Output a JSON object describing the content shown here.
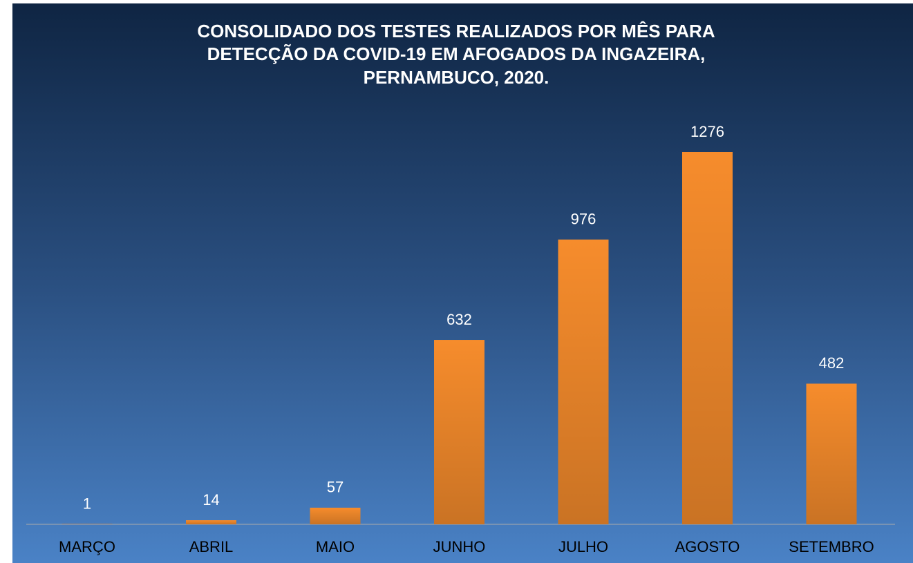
{
  "chart_data": {
    "type": "bar",
    "title": [
      "CONSOLIDADO DOS TESTES REALIZADOS POR MÊS PARA",
      "DETECÇÃO DA COVID-19 EM AFOGADOS DA INGAZEIRA,",
      "PERNAMBUCO, 2020."
    ],
    "categories": [
      "MARÇO",
      "ABRIL",
      "MAIO",
      "JUNHO",
      "JULHO",
      "AGOSTO",
      "SETEMBRO"
    ],
    "values": [
      1,
      14,
      57,
      632,
      976,
      1276,
      482
    ],
    "color": "#f68c2c"
  }
}
